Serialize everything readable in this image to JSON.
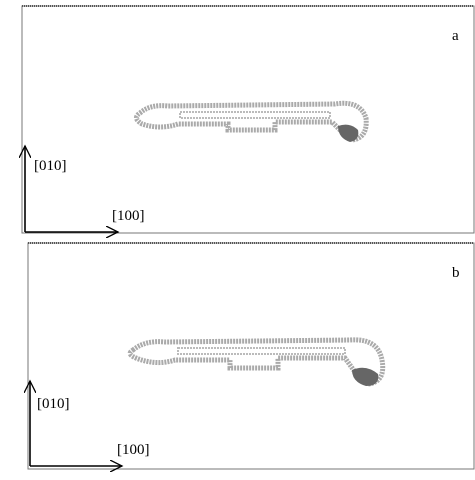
{
  "panels": [
    {
      "label": "a",
      "axes": {
        "vertical": "[010]",
        "horizontal": "[100]"
      }
    },
    {
      "label": "b",
      "axes": {
        "vertical": "[010]",
        "horizontal": "[100]"
      }
    }
  ]
}
